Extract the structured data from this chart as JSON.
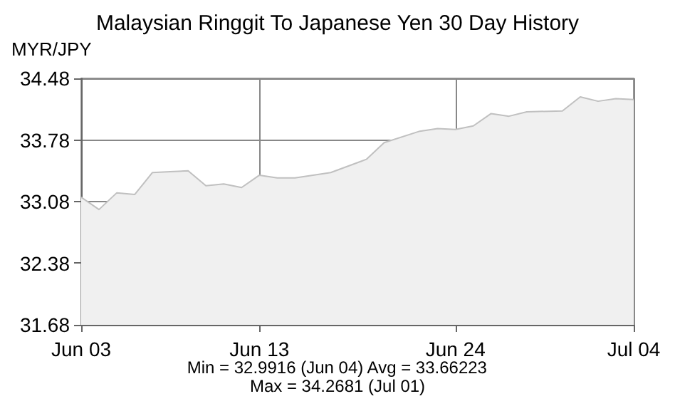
{
  "chart_data": {
    "type": "area",
    "title": "Malaysian Ringgit To Japanese Yen 30 Day History",
    "ylabel": "MYR/JPY",
    "x": [
      "--06-03",
      "--06-04",
      "--06-05",
      "--06-06",
      "--06-07",
      "--06-08",
      "--06-09",
      "--06-10",
      "--06-11",
      "--06-12",
      "--06-13",
      "--06-14",
      "--06-15",
      "--06-17",
      "--06-19",
      "--06-20",
      "--06-22",
      "--06-23",
      "--06-24",
      "--06-25",
      "--06-26",
      "--06-27",
      "--06-28",
      "--06-30",
      "--07-01",
      "--07-02",
      "--07-03",
      "--07-04"
    ],
    "series": [
      {
        "color": "#c0c0c0",
        "values": [
          33.13,
          32.99,
          33.18,
          33.16,
          33.41,
          33.42,
          33.43,
          33.26,
          33.28,
          33.24,
          33.38,
          33.35,
          33.35,
          33.41,
          33.56,
          33.75,
          33.88,
          33.91,
          33.9,
          33.94,
          34.08,
          34.05,
          34.1,
          34.11,
          34.27,
          34.22,
          34.25,
          34.24
        ]
      }
    ],
    "xlim": [
      "--06-03",
      "--07-04"
    ],
    "xticks": [
      {
        "value": "--06-03",
        "label": "Jun 03"
      },
      {
        "value": "--06-13",
        "label": "Jun 13"
      },
      {
        "value": "--06-24",
        "label": "Jun 24"
      },
      {
        "value": "--07-04",
        "label": "Jul 04"
      }
    ],
    "ylim": [
      31.68,
      34.48
    ],
    "yticks": [
      31.68,
      32.38,
      33.08,
      33.78,
      34.48
    ],
    "grid": true,
    "marker": "none",
    "line_style": "solid",
    "annotations": [
      "Min = 32.9916 (Jun 04) Avg = 33.66223",
      "Max = 34.2681 (Jul 01)"
    ]
  }
}
